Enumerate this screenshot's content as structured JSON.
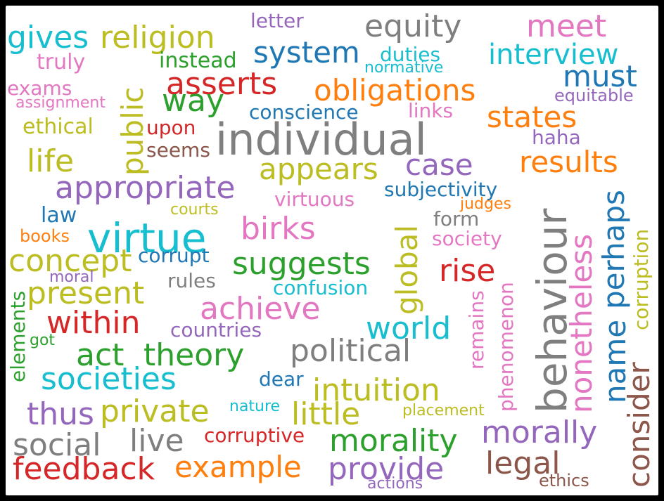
{
  "colors": {
    "blue": "#1f77b4",
    "orange": "#ff7f0e",
    "green": "#2ca02c",
    "red": "#d62728",
    "purple": "#9467bd",
    "brown": "#8c564b",
    "pink": "#e377c2",
    "gray": "#7f7f7f",
    "olive": "#bcbd22",
    "cyan": "#17becf"
  },
  "words": [
    {
      "text": "gives",
      "color": "cyan"
    },
    {
      "text": "religion",
      "color": "olive"
    },
    {
      "text": "letter",
      "color": "purple"
    },
    {
      "text": "equity",
      "color": "gray"
    },
    {
      "text": "meet",
      "color": "pink"
    },
    {
      "text": "truly",
      "color": "pink"
    },
    {
      "text": "instead",
      "color": "green"
    },
    {
      "text": "system",
      "color": "blue"
    },
    {
      "text": "duties",
      "color": "cyan"
    },
    {
      "text": "interview",
      "color": "cyan"
    },
    {
      "text": "normative",
      "color": "cyan"
    },
    {
      "text": "must",
      "color": "blue"
    },
    {
      "text": "exams",
      "color": "pink"
    },
    {
      "text": "asserts",
      "color": "red"
    },
    {
      "text": "obligations",
      "color": "orange"
    },
    {
      "text": "equitable",
      "color": "purple"
    },
    {
      "text": "assignment",
      "color": "pink"
    },
    {
      "text": "way",
      "color": "green"
    },
    {
      "text": "conscience",
      "color": "blue"
    },
    {
      "text": "links",
      "color": "pink"
    },
    {
      "text": "states",
      "color": "orange"
    },
    {
      "text": "ethical",
      "color": "olive"
    },
    {
      "text": "upon",
      "color": "red"
    },
    {
      "text": "individual",
      "color": "gray"
    },
    {
      "text": "haha",
      "color": "purple"
    },
    {
      "text": "public",
      "color": "olive"
    },
    {
      "text": "seems",
      "color": "brown"
    },
    {
      "text": "life",
      "color": "olive"
    },
    {
      "text": "appears",
      "color": "olive"
    },
    {
      "text": "case",
      "color": "purple"
    },
    {
      "text": "results",
      "color": "orange"
    },
    {
      "text": "appropriate",
      "color": "purple"
    },
    {
      "text": "subjectivity",
      "color": "blue"
    },
    {
      "text": "virtuous",
      "color": "pink"
    },
    {
      "text": "judges",
      "color": "orange"
    },
    {
      "text": "law",
      "color": "blue"
    },
    {
      "text": "courts",
      "color": "olive"
    },
    {
      "text": "behaviour",
      "color": "gray"
    },
    {
      "text": "perhaps",
      "color": "blue"
    },
    {
      "text": "books",
      "color": "orange"
    },
    {
      "text": "virtue",
      "color": "cyan"
    },
    {
      "text": "birks",
      "color": "pink"
    },
    {
      "text": "form",
      "color": "gray"
    },
    {
      "text": "nonetheless",
      "color": "pink"
    },
    {
      "text": "corruption",
      "color": "olive"
    },
    {
      "text": "society",
      "color": "pink"
    },
    {
      "text": "global",
      "color": "olive"
    },
    {
      "text": "concept",
      "color": "olive"
    },
    {
      "text": "corrupt",
      "color": "blue"
    },
    {
      "text": "suggests",
      "color": "green"
    },
    {
      "text": "rise",
      "color": "red"
    },
    {
      "text": "moral",
      "color": "purple"
    },
    {
      "text": "rules",
      "color": "gray"
    },
    {
      "text": "present",
      "color": "olive"
    },
    {
      "text": "confusion",
      "color": "cyan"
    },
    {
      "text": "achieve",
      "color": "pink"
    },
    {
      "text": "remains",
      "color": "pink"
    },
    {
      "text": "name",
      "color": "blue"
    },
    {
      "text": "elements",
      "color": "green"
    },
    {
      "text": "within",
      "color": "red"
    },
    {
      "text": "world",
      "color": "cyan"
    },
    {
      "text": "countries",
      "color": "purple"
    },
    {
      "text": "phenomenon",
      "color": "pink"
    },
    {
      "text": "got",
      "color": "green"
    },
    {
      "text": "political",
      "color": "gray"
    },
    {
      "text": "consider",
      "color": "brown"
    },
    {
      "text": "act",
      "color": "green"
    },
    {
      "text": "theory",
      "color": "green"
    },
    {
      "text": "societies",
      "color": "cyan"
    },
    {
      "text": "dear",
      "color": "blue"
    },
    {
      "text": "intuition",
      "color": "olive"
    },
    {
      "text": "thus",
      "color": "purple"
    },
    {
      "text": "private",
      "color": "olive"
    },
    {
      "text": "nature",
      "color": "cyan"
    },
    {
      "text": "little",
      "color": "olive"
    },
    {
      "text": "placement",
      "color": "olive"
    },
    {
      "text": "morally",
      "color": "purple"
    },
    {
      "text": "social",
      "color": "gray"
    },
    {
      "text": "live",
      "color": "gray"
    },
    {
      "text": "corruptive",
      "color": "red"
    },
    {
      "text": "morality",
      "color": "green"
    },
    {
      "text": "legal",
      "color": "brown"
    },
    {
      "text": "feedback",
      "color": "red"
    },
    {
      "text": "example",
      "color": "orange"
    },
    {
      "text": "provide",
      "color": "purple"
    },
    {
      "text": "ethics",
      "color": "brown"
    },
    {
      "text": "actions",
      "color": "purple"
    }
  ]
}
